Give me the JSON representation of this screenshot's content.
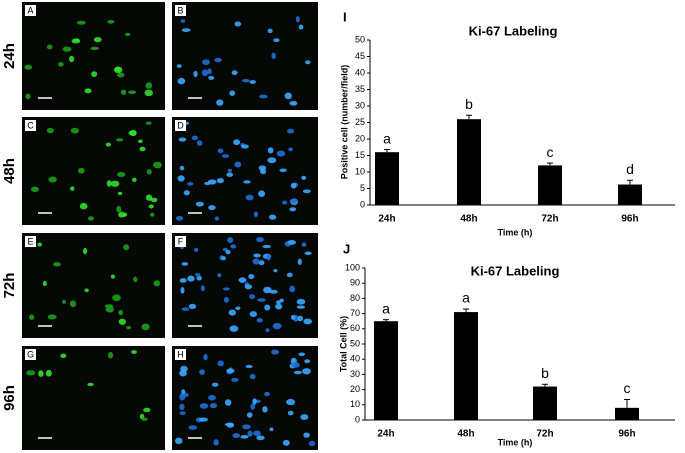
{
  "panels": {
    "rows": [
      "24h",
      "48h",
      "72h",
      "96h"
    ],
    "left_labels": [
      "A",
      "C",
      "E",
      "G"
    ],
    "right_labels": [
      "B",
      "D",
      "F",
      "H"
    ]
  },
  "chart_data": [
    {
      "type": "bar",
      "panel_label": "I",
      "title": "Ki-67 Labeling",
      "x_label": "Time (h)",
      "y_label": "Positive cell (number/field)",
      "categories": [
        "24h",
        "48h",
        "72h",
        "96h"
      ],
      "values": [
        16,
        26,
        12,
        6.2
      ],
      "errors": [
        0.8,
        1.2,
        0.7,
        1.3
      ],
      "annotations": [
        "a",
        "b",
        "c",
        "d"
      ],
      "color": "#000000",
      "ylim": [
        0,
        50
      ],
      "yticks": [
        0,
        5,
        10,
        15,
        20,
        25,
        30,
        35,
        40,
        45,
        50
      ]
    },
    {
      "type": "bar",
      "panel_label": "J",
      "title": "Ki-67 Labeling",
      "x_label": "Time (h)",
      "y_label": "Total Cell (%)",
      "categories": [
        "24h",
        "48h",
        "72h",
        "96h"
      ],
      "values": [
        65,
        71,
        22,
        8
      ],
      "errors": [
        1,
        2,
        1.5,
        5.5
      ],
      "annotations": [
        "a",
        "a",
        "b",
        "c"
      ],
      "color": "#000000",
      "ylim": [
        0,
        100
      ],
      "yticks": [
        0,
        10,
        20,
        30,
        40,
        50,
        60,
        70,
        80,
        90,
        100
      ]
    }
  ]
}
